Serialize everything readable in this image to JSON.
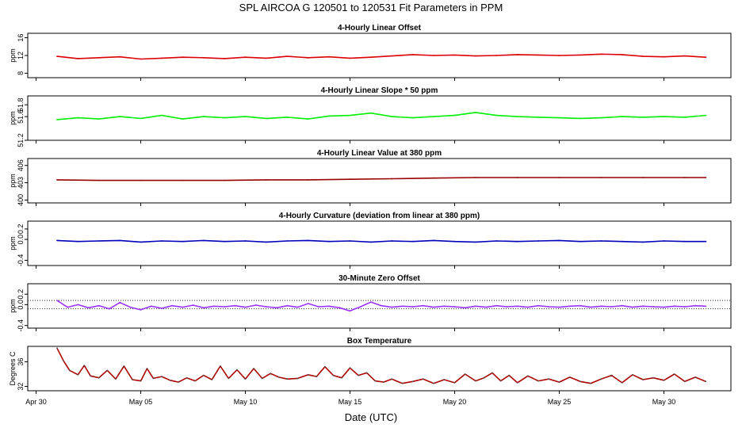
{
  "figure": {
    "title": "SPL    AIRCOA G    120501 to 120531    Fit Parameters in PPM",
    "xlabel": "Date (UTC)",
    "x_ticks": [
      "Apr 30",
      "May 05",
      "May 10",
      "May 15",
      "May 20",
      "May 25",
      "May 30"
    ]
  },
  "chart_data": [
    {
      "type": "line",
      "title": "4-Hourly Linear Offset",
      "ylabel": "ppm",
      "yticks": [
        "8",
        "12",
        "16"
      ],
      "ylim": [
        7,
        17
      ],
      "color": "#dd0000",
      "points": [
        [
          1.0,
          11.8
        ],
        [
          2.0,
          11.3
        ],
        [
          3.0,
          11.5
        ],
        [
          4.0,
          11.7
        ],
        [
          5.0,
          11.2
        ],
        [
          6.0,
          11.4
        ],
        [
          7.0,
          11.6
        ],
        [
          8.0,
          11.5
        ],
        [
          9.0,
          11.3
        ],
        [
          10.0,
          11.6
        ],
        [
          11.0,
          11.4
        ],
        [
          12.0,
          11.8
        ],
        [
          13.0,
          11.5
        ],
        [
          14.0,
          11.7
        ],
        [
          15.0,
          11.4
        ],
        [
          16.0,
          11.6
        ],
        [
          17.0,
          11.9
        ],
        [
          18.0,
          12.2
        ],
        [
          19.0,
          12.0
        ],
        [
          20.0,
          12.1
        ],
        [
          21.0,
          11.9
        ],
        [
          22.0,
          12.0
        ],
        [
          23.0,
          12.2
        ],
        [
          24.0,
          12.1
        ],
        [
          25.0,
          12.0
        ],
        [
          26.0,
          12.1
        ],
        [
          27.0,
          12.3
        ],
        [
          28.0,
          12.2
        ],
        [
          29.0,
          11.8
        ],
        [
          30.0,
          11.7
        ],
        [
          31.0,
          11.9
        ],
        [
          32.0,
          11.6
        ]
      ]
    },
    {
      "type": "line",
      "title": "4-Hourly Linear Slope * 50 ppm",
      "ylabel": "ppm",
      "yticks": [
        "51.2",
        "51.6",
        "51.8"
      ],
      "ylim": [
        51.2,
        51.95
      ],
      "color": "#00ee00",
      "points": [
        [
          1.0,
          51.55
        ],
        [
          2.0,
          51.58
        ],
        [
          3.0,
          51.56
        ],
        [
          4.0,
          51.6
        ],
        [
          5.0,
          51.57
        ],
        [
          6.0,
          51.62
        ],
        [
          7.0,
          51.56
        ],
        [
          8.0,
          51.6
        ],
        [
          9.0,
          51.58
        ],
        [
          10.0,
          51.6
        ],
        [
          11.0,
          51.57
        ],
        [
          12.0,
          51.59
        ],
        [
          13.0,
          51.56
        ],
        [
          14.0,
          51.61
        ],
        [
          15.0,
          51.62
        ],
        [
          16.0,
          51.66
        ],
        [
          17.0,
          51.6
        ],
        [
          18.0,
          51.58
        ],
        [
          19.0,
          51.6
        ],
        [
          20.0,
          51.62
        ],
        [
          21.0,
          51.67
        ],
        [
          22.0,
          51.62
        ],
        [
          23.0,
          51.6
        ],
        [
          24.0,
          51.59
        ],
        [
          25.0,
          51.58
        ],
        [
          26.0,
          51.57
        ],
        [
          27.0,
          51.58
        ],
        [
          28.0,
          51.6
        ],
        [
          29.0,
          51.59
        ],
        [
          30.0,
          51.6
        ],
        [
          31.0,
          51.59
        ],
        [
          32.0,
          51.62
        ]
      ]
    },
    {
      "type": "line",
      "title": "4-Hourly Linear Value at 380 ppm",
      "ylabel": "ppm",
      "yticks": [
        "400",
        "403",
        "406"
      ],
      "ylim": [
        399.5,
        407.2
      ],
      "color": "#990000",
      "points": [
        [
          1.0,
          403.5
        ],
        [
          3.0,
          403.4
        ],
        [
          5.0,
          403.4
        ],
        [
          7.0,
          403.4
        ],
        [
          9.0,
          403.4
        ],
        [
          11.0,
          403.5
        ],
        [
          13.0,
          403.5
        ],
        [
          15.0,
          403.6
        ],
        [
          17.0,
          403.7
        ],
        [
          19.0,
          403.8
        ],
        [
          21.0,
          403.9
        ],
        [
          23.0,
          403.9
        ],
        [
          25.0,
          403.9
        ],
        [
          27.0,
          403.9
        ],
        [
          29.0,
          403.9
        ],
        [
          31.0,
          403.9
        ],
        [
          32.0,
          403.9
        ]
      ]
    },
    {
      "type": "line",
      "title": "4-Hourly Curvature (deviation from linear at 380 ppm)",
      "ylabel": "ppm",
      "yticks": [
        "-0.4",
        "0.0",
        "0.2"
      ],
      "ylim": [
        -0.5,
        0.35
      ],
      "color": "#0000bb",
      "points": [
        [
          1.0,
          -0.02
        ],
        [
          2.0,
          -0.04
        ],
        [
          3.0,
          -0.03
        ],
        [
          4.0,
          -0.02
        ],
        [
          5.0,
          -0.05
        ],
        [
          6.0,
          -0.03
        ],
        [
          7.0,
          -0.04
        ],
        [
          8.0,
          -0.02
        ],
        [
          9.0,
          -0.04
        ],
        [
          10.0,
          -0.03
        ],
        [
          11.0,
          -0.05
        ],
        [
          12.0,
          -0.03
        ],
        [
          13.0,
          -0.02
        ],
        [
          14.0,
          -0.04
        ],
        [
          15.0,
          -0.03
        ],
        [
          16.0,
          -0.05
        ],
        [
          17.0,
          -0.03
        ],
        [
          18.0,
          -0.04
        ],
        [
          19.0,
          -0.02
        ],
        [
          20.0,
          -0.04
        ],
        [
          21.0,
          -0.05
        ],
        [
          22.0,
          -0.03
        ],
        [
          23.0,
          -0.04
        ],
        [
          24.0,
          -0.03
        ],
        [
          25.0,
          -0.02
        ],
        [
          26.0,
          -0.04
        ],
        [
          27.0,
          -0.03
        ],
        [
          28.0,
          -0.04
        ],
        [
          29.0,
          -0.05
        ],
        [
          30.0,
          -0.03
        ],
        [
          31.0,
          -0.04
        ],
        [
          32.0,
          -0.04
        ]
      ]
    },
    {
      "type": "line",
      "title": "30-Minute Zero Offset",
      "ylabel": "ppm",
      "yticks": [
        "-0.4",
        "0.0",
        "0.2"
      ],
      "ylim": [
        -0.45,
        0.4
      ],
      "color": "#9933ff",
      "reference_lines": [
        0.08,
        -0.08
      ],
      "points": [
        [
          1.0,
          0.08
        ],
        [
          1.5,
          -0.05
        ],
        [
          2.0,
          0.0
        ],
        [
          2.5,
          -0.06
        ],
        [
          3.0,
          -0.02
        ],
        [
          3.5,
          -0.08
        ],
        [
          4.0,
          0.04
        ],
        [
          4.5,
          -0.05
        ],
        [
          5.0,
          -0.1
        ],
        [
          5.5,
          -0.03
        ],
        [
          6.0,
          -0.07
        ],
        [
          6.5,
          -0.02
        ],
        [
          7.0,
          -0.05
        ],
        [
          7.5,
          -0.01
        ],
        [
          8.0,
          -0.06
        ],
        [
          8.5,
          -0.03
        ],
        [
          9.0,
          -0.04
        ],
        [
          9.5,
          -0.02
        ],
        [
          10.0,
          -0.05
        ],
        [
          10.5,
          -0.01
        ],
        [
          11.0,
          -0.04
        ],
        [
          11.5,
          -0.06
        ],
        [
          12.0,
          -0.02
        ],
        [
          12.5,
          -0.05
        ],
        [
          13.0,
          0.02
        ],
        [
          13.5,
          -0.04
        ],
        [
          14.0,
          -0.03
        ],
        [
          14.5,
          -0.06
        ],
        [
          15.0,
          -0.12
        ],
        [
          15.5,
          -0.04
        ],
        [
          16.0,
          0.05
        ],
        [
          16.5,
          -0.02
        ],
        [
          17.0,
          -0.05
        ],
        [
          17.5,
          -0.03
        ],
        [
          18.0,
          -0.04
        ],
        [
          18.5,
          -0.02
        ],
        [
          19.0,
          -0.05
        ],
        [
          19.5,
          -0.03
        ],
        [
          20.0,
          -0.04
        ],
        [
          20.5,
          -0.06
        ],
        [
          21.0,
          -0.03
        ],
        [
          21.5,
          -0.05
        ],
        [
          22.0,
          -0.02
        ],
        [
          22.5,
          -0.04
        ],
        [
          23.0,
          -0.03
        ],
        [
          23.5,
          -0.05
        ],
        [
          24.0,
          -0.02
        ],
        [
          24.5,
          -0.04
        ],
        [
          25.0,
          -0.05
        ],
        [
          25.5,
          -0.03
        ],
        [
          26.0,
          -0.02
        ],
        [
          26.5,
          -0.05
        ],
        [
          27.0,
          -0.03
        ],
        [
          27.5,
          -0.04
        ],
        [
          28.0,
          -0.02
        ],
        [
          28.5,
          -0.05
        ],
        [
          29.0,
          -0.03
        ],
        [
          29.5,
          -0.04
        ],
        [
          30.0,
          -0.05
        ],
        [
          30.5,
          -0.03
        ],
        [
          31.0,
          -0.04
        ],
        [
          31.5,
          -0.02
        ],
        [
          32.0,
          -0.03
        ]
      ]
    },
    {
      "type": "line",
      "title": "Box Temperature",
      "ylabel": "Degrees C",
      "yticks": [
        "32",
        "36"
      ],
      "ylim": [
        31.3,
        38.5
      ],
      "color": "#aa0000",
      "marker_color": "#555555",
      "points": [
        [
          1.0,
          38.2
        ],
        [
          1.3,
          36.2
        ],
        [
          1.6,
          34.6
        ],
        [
          2.0,
          33.9
        ],
        [
          2.3,
          35.4
        ],
        [
          2.6,
          33.7
        ],
        [
          3.0,
          33.4
        ],
        [
          3.4,
          34.6
        ],
        [
          3.8,
          33.2
        ],
        [
          4.2,
          35.3
        ],
        [
          4.6,
          33.1
        ],
        [
          5.0,
          32.9
        ],
        [
          5.3,
          34.9
        ],
        [
          5.6,
          33.3
        ],
        [
          6.0,
          33.6
        ],
        [
          6.4,
          33.0
        ],
        [
          6.8,
          32.7
        ],
        [
          7.2,
          33.4
        ],
        [
          7.6,
          32.9
        ],
        [
          8.0,
          33.8
        ],
        [
          8.4,
          33.1
        ],
        [
          8.8,
          35.3
        ],
        [
          9.2,
          33.3
        ],
        [
          9.6,
          34.7
        ],
        [
          10.0,
          33.2
        ],
        [
          10.4,
          34.9
        ],
        [
          10.8,
          33.3
        ],
        [
          11.2,
          34.1
        ],
        [
          11.6,
          33.5
        ],
        [
          12.0,
          33.2
        ],
        [
          12.5,
          33.3
        ],
        [
          13.0,
          33.9
        ],
        [
          13.4,
          33.6
        ],
        [
          13.8,
          35.2
        ],
        [
          14.2,
          33.8
        ],
        [
          14.6,
          33.4
        ],
        [
          15.0,
          35.0
        ],
        [
          15.4,
          33.8
        ],
        [
          15.8,
          34.2
        ],
        [
          16.2,
          32.9
        ],
        [
          16.6,
          32.7
        ],
        [
          17.0,
          33.2
        ],
        [
          17.5,
          32.5
        ],
        [
          18.0,
          32.8
        ],
        [
          18.5,
          33.2
        ],
        [
          19.0,
          32.5
        ],
        [
          19.5,
          33.1
        ],
        [
          20.0,
          32.6
        ],
        [
          20.5,
          34.0
        ],
        [
          21.0,
          32.9
        ],
        [
          21.4,
          33.4
        ],
        [
          21.8,
          34.2
        ],
        [
          22.2,
          32.9
        ],
        [
          22.6,
          33.8
        ],
        [
          23.0,
          32.6
        ],
        [
          23.5,
          33.7
        ],
        [
          24.0,
          32.9
        ],
        [
          24.5,
          33.2
        ],
        [
          25.0,
          32.7
        ],
        [
          25.5,
          33.5
        ],
        [
          26.0,
          32.8
        ],
        [
          26.5,
          32.5
        ],
        [
          27.0,
          33.2
        ],
        [
          27.5,
          33.8
        ],
        [
          28.0,
          32.6
        ],
        [
          28.5,
          33.9
        ],
        [
          29.0,
          33.1
        ],
        [
          29.5,
          33.4
        ],
        [
          30.0,
          33.0
        ],
        [
          30.5,
          34.0
        ],
        [
          31.0,
          32.8
        ],
        [
          31.5,
          33.5
        ],
        [
          32.0,
          32.8
        ]
      ]
    }
  ]
}
